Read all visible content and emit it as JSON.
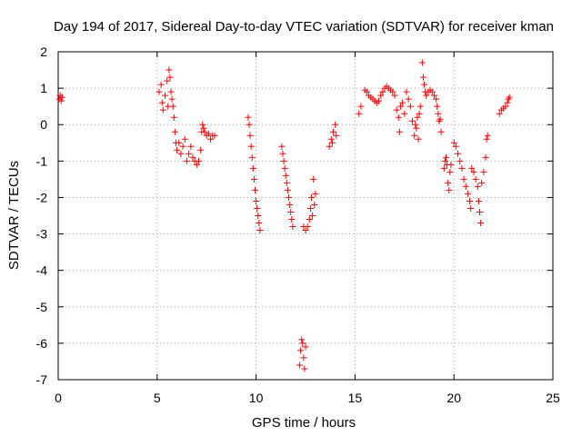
{
  "chart_data": {
    "type": "scatter",
    "title": "Day 194 of 2017, Sidereal Day-to-day VTEC variation (SDTVAR) for receiver kman",
    "xlabel": "GPS time / hours",
    "ylabel": "SDTVAR / TECUs",
    "xlim": [
      0,
      25
    ],
    "ylim": [
      -7,
      2
    ],
    "xticks": [
      0,
      5,
      10,
      15,
      20,
      25
    ],
    "yticks": [
      2,
      1,
      0,
      -1,
      -2,
      -3,
      -4,
      -5,
      -6,
      -7
    ],
    "xtick_labels": [
      "0",
      "5",
      "10",
      "15",
      "20",
      "25"
    ],
    "ytick_labels": [
      "2",
      "1",
      "0",
      "-1",
      "-2",
      "-3",
      "-4",
      "-5",
      "-6",
      "-7"
    ],
    "grid": true,
    "marker": "+",
    "color": "#ff0000",
    "segments": [
      {
        "name": "seg-01",
        "points": [
          [
            0.05,
            0.7
          ],
          [
            0.1,
            0.8
          ],
          [
            0.15,
            0.65
          ],
          [
            0.2,
            0.75
          ]
        ]
      },
      {
        "name": "seg-02",
        "points": [
          [
            5.1,
            0.9
          ],
          [
            5.2,
            1.1
          ],
          [
            5.25,
            0.6
          ],
          [
            5.3,
            0.4
          ],
          [
            5.4,
            0.8
          ],
          [
            5.5,
            1.2
          ],
          [
            5.55,
            0.5
          ],
          [
            5.6,
            1.5
          ],
          [
            5.65,
            1.3
          ],
          [
            5.7,
            0.9
          ],
          [
            5.75,
            0.7
          ],
          [
            5.8,
            0.5
          ],
          [
            5.85,
            0.2
          ],
          [
            5.9,
            -0.2
          ],
          [
            5.95,
            -0.5
          ],
          [
            6.0,
            -0.7
          ],
          [
            6.1,
            -0.5
          ],
          [
            6.2,
            -0.8
          ],
          [
            6.3,
            -0.6
          ],
          [
            6.4,
            -0.4
          ],
          [
            6.5,
            -1.0
          ],
          [
            6.6,
            -0.8
          ],
          [
            6.7,
            -0.6
          ],
          [
            6.8,
            -0.9
          ],
          [
            6.9,
            -1.0
          ],
          [
            7.0,
            -1.1
          ],
          [
            7.1,
            -1.0
          ],
          [
            7.2,
            -0.7
          ],
          [
            7.25,
            -0.2
          ],
          [
            7.3,
            0.0
          ],
          [
            7.35,
            -0.1
          ],
          [
            7.4,
            -0.2
          ],
          [
            7.5,
            -0.3
          ],
          [
            7.6,
            -0.25
          ],
          [
            7.7,
            -0.4
          ],
          [
            7.8,
            -0.3
          ],
          [
            7.9,
            -0.3
          ]
        ]
      },
      {
        "name": "seg-03",
        "points": [
          [
            9.6,
            0.2
          ],
          [
            9.65,
            0.0
          ],
          [
            9.7,
            -0.3
          ],
          [
            9.75,
            -0.6
          ],
          [
            9.8,
            -0.9
          ],
          [
            9.85,
            -1.2
          ],
          [
            9.9,
            -1.5
          ],
          [
            9.95,
            -1.8
          ],
          [
            10.0,
            -2.1
          ],
          [
            10.05,
            -2.3
          ],
          [
            10.1,
            -2.5
          ],
          [
            10.15,
            -2.7
          ],
          [
            10.2,
            -2.9
          ]
        ]
      },
      {
        "name": "seg-04",
        "points": [
          [
            11.3,
            -0.6
          ],
          [
            11.35,
            -0.8
          ],
          [
            11.4,
            -1.0
          ],
          [
            11.45,
            -1.2
          ],
          [
            11.5,
            -1.4
          ],
          [
            11.55,
            -1.6
          ],
          [
            11.6,
            -1.8
          ],
          [
            11.65,
            -2.0
          ],
          [
            11.7,
            -2.2
          ],
          [
            11.75,
            -2.4
          ],
          [
            11.8,
            -2.6
          ],
          [
            11.85,
            -2.8
          ]
        ]
      },
      {
        "name": "seg-05",
        "points": [
          [
            12.2,
            -6.6
          ],
          [
            12.25,
            -6.2
          ],
          [
            12.3,
            -5.9
          ],
          [
            12.35,
            -6.0
          ],
          [
            12.4,
            -6.4
          ],
          [
            12.45,
            -6.7
          ],
          [
            12.5,
            -6.1
          ]
        ]
      },
      {
        "name": "seg-06",
        "points": [
          [
            12.4,
            -2.8
          ],
          [
            12.5,
            -2.9
          ],
          [
            12.6,
            -2.8
          ],
          [
            12.7,
            -2.6
          ],
          [
            12.75,
            -2.3
          ],
          [
            12.8,
            -2.0
          ],
          [
            12.85,
            -2.5
          ],
          [
            12.9,
            -1.5
          ],
          [
            12.95,
            -2.2
          ],
          [
            13.0,
            -1.9
          ]
        ]
      },
      {
        "name": "seg-07",
        "points": [
          [
            13.7,
            -0.6
          ],
          [
            13.8,
            -0.4
          ],
          [
            13.9,
            -0.2
          ],
          [
            14.0,
            0.0
          ],
          [
            14.05,
            -0.3
          ],
          [
            13.85,
            -0.5
          ]
        ]
      },
      {
        "name": "seg-08",
        "points": [
          [
            15.2,
            0.3
          ],
          [
            15.3,
            0.5
          ],
          [
            15.5,
            0.95
          ],
          [
            15.6,
            0.9
          ],
          [
            15.7,
            0.8
          ],
          [
            15.8,
            0.75
          ],
          [
            15.9,
            0.7
          ],
          [
            16.0,
            0.65
          ],
          [
            16.1,
            0.6
          ],
          [
            16.2,
            0.65
          ],
          [
            16.3,
            0.8
          ],
          [
            16.4,
            0.9
          ],
          [
            16.5,
            1.0
          ],
          [
            16.6,
            1.05
          ],
          [
            16.7,
            1.0
          ],
          [
            16.8,
            0.95
          ],
          [
            16.9,
            0.9
          ],
          [
            17.0,
            0.8
          ],
          [
            17.1,
            0.4
          ],
          [
            17.2,
            0.2
          ],
          [
            17.25,
            -0.2
          ],
          [
            17.3,
            0.5
          ],
          [
            17.4,
            0.6
          ],
          [
            17.5,
            0.3
          ],
          [
            17.6,
            0.9
          ],
          [
            17.7,
            0.7
          ],
          [
            17.8,
            0.5
          ],
          [
            17.9,
            0.1
          ],
          [
            18.0,
            -0.3
          ],
          [
            18.05,
            0.0
          ],
          [
            18.1,
            -0.1
          ],
          [
            18.15,
            0.2
          ],
          [
            18.2,
            -0.4
          ],
          [
            18.25,
            0.3
          ],
          [
            18.3,
            0.5
          ],
          [
            18.4,
            1.7
          ],
          [
            18.45,
            1.3
          ],
          [
            18.5,
            1.1
          ],
          [
            18.55,
            0.9
          ],
          [
            18.6,
            0.8
          ],
          [
            18.7,
            0.9
          ],
          [
            18.8,
            0.95
          ],
          [
            18.9,
            0.9
          ],
          [
            19.0,
            0.8
          ],
          [
            19.1,
            0.7
          ],
          [
            19.15,
            0.5
          ],
          [
            19.2,
            0.3
          ],
          [
            19.25,
            0.1
          ],
          [
            19.3,
            0.15
          ],
          [
            19.35,
            -0.2
          ]
        ]
      },
      {
        "name": "seg-09",
        "points": [
          [
            19.5,
            -1.2
          ],
          [
            19.55,
            -1.0
          ],
          [
            19.6,
            -0.9
          ],
          [
            19.65,
            -1.1
          ],
          [
            19.7,
            -1.6
          ],
          [
            19.75,
            -1.8
          ],
          [
            19.8,
            -1.3
          ],
          [
            19.85,
            -1.1
          ],
          [
            20.0,
            -0.5
          ],
          [
            20.1,
            -0.6
          ],
          [
            20.2,
            -0.8
          ],
          [
            20.3,
            -1.0
          ],
          [
            20.4,
            -1.2
          ],
          [
            20.5,
            -1.5
          ],
          [
            20.6,
            -1.7
          ],
          [
            20.7,
            -1.9
          ],
          [
            20.8,
            -2.1
          ],
          [
            20.85,
            -2.3
          ],
          [
            20.9,
            -1.2
          ],
          [
            21.0,
            -1.3
          ],
          [
            21.1,
            -1.5
          ],
          [
            21.2,
            -1.7
          ],
          [
            21.25,
            -2.1
          ],
          [
            21.3,
            -2.4
          ],
          [
            21.35,
            -2.7
          ],
          [
            21.4,
            -1.6
          ],
          [
            21.5,
            -1.3
          ],
          [
            21.6,
            -0.9
          ],
          [
            21.65,
            -0.4
          ],
          [
            21.7,
            -0.3
          ]
        ]
      },
      {
        "name": "seg-10",
        "points": [
          [
            22.3,
            0.3
          ],
          [
            22.4,
            0.4
          ],
          [
            22.5,
            0.45
          ],
          [
            22.6,
            0.5
          ],
          [
            22.7,
            0.6
          ],
          [
            22.75,
            0.7
          ],
          [
            22.8,
            0.75
          ]
        ]
      }
    ]
  }
}
